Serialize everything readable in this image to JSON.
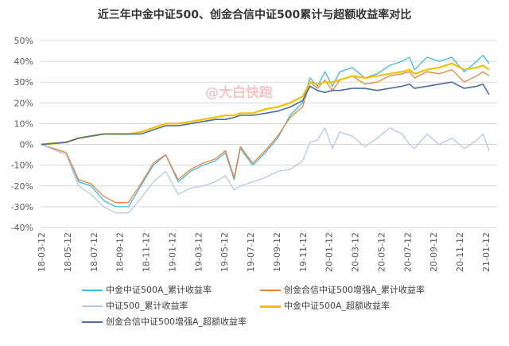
{
  "chart_data": {
    "type": "line",
    "title": "近三年中金中证500、创金合信中证500累计与超额收益率对比",
    "watermark": "@大白快跑",
    "y_tick_labels": [
      "50%",
      "40%",
      "30%",
      "20%",
      "10%",
      "0%",
      "-10%",
      "-20%",
      "-30%",
      "-40%"
    ],
    "ylim": [
      -40,
      50
    ],
    "x_tick_labels": [
      "18-03-12",
      "18-05-12",
      "18-07-12",
      "18-09-12",
      "18-11-12",
      "19-01-12",
      "19-03-12",
      "19-05-12",
      "19-07-12",
      "19-09-12",
      "19-11-12",
      "20-01-12",
      "20-03-12",
      "20-05-12",
      "20-07-12",
      "20-09-12",
      "20-11-12",
      "21-01-12"
    ],
    "x_index": [
      0,
      2,
      3,
      4,
      5,
      6,
      7,
      8,
      9,
      10,
      11,
      12,
      13,
      14,
      14.8,
      15.5,
      16,
      17,
      18,
      19,
      20,
      21,
      21.6,
      22.2,
      22.8,
      23.4,
      24,
      25,
      26,
      27,
      28,
      29,
      29.6,
      30,
      31,
      32,
      33,
      34,
      35,
      35.5,
      36
    ],
    "series": [
      {
        "name": "中金中证500A_累计收益率",
        "color": "#41b9e6",
        "width": 1.3,
        "values": [
          0,
          -4,
          -18,
          -20,
          -27,
          -30,
          -30,
          -20,
          -10,
          -5,
          -18,
          -13,
          -10,
          -8,
          -4,
          -17,
          -2,
          -10,
          -4,
          3,
          14,
          20,
          32,
          28,
          35,
          28,
          35,
          37,
          32,
          34,
          38,
          40,
          42,
          36,
          42,
          40,
          42,
          35,
          40,
          43,
          39
        ]
      },
      {
        "name": "创金合信中证500增强A_累计收益率",
        "color": "#e8863a",
        "width": 1.3,
        "values": [
          0,
          -4,
          -17,
          -19,
          -25,
          -28,
          -28,
          -19,
          -9,
          -5,
          -17,
          -12,
          -9,
          -7,
          -3,
          -16,
          -1,
          -9,
          -3,
          4,
          13,
          18,
          30,
          27,
          31,
          26,
          31,
          33,
          29,
          30,
          33,
          34,
          35,
          32,
          35,
          34,
          36,
          30,
          33,
          35,
          33
        ]
      },
      {
        "name": "中证500_累计收益率",
        "color": "#b4c8e6",
        "width": 1.3,
        "values": [
          0,
          -5,
          -20,
          -24,
          -30,
          -33,
          -33,
          -26,
          -18,
          -13,
          -24,
          -21,
          -20,
          -18,
          -15,
          -22,
          -20,
          -18,
          -16,
          -13,
          -12,
          -8,
          1,
          2,
          8,
          -2,
          6,
          4,
          -1,
          3,
          8,
          5,
          0,
          -2,
          5,
          0,
          3,
          -2,
          2,
          5,
          -3
        ]
      },
      {
        "name": "中金中证500A_超额收益率",
        "color": "#f2c200",
        "width": 2.2,
        "values": [
          0,
          1,
          3,
          4,
          5,
          5,
          5,
          6,
          8,
          10,
          10,
          11,
          12,
          13,
          14,
          14,
          15,
          15,
          17,
          18,
          20,
          23,
          30,
          29,
          30,
          30,
          31,
          33,
          32,
          33,
          34,
          35,
          36,
          34,
          36,
          37,
          39,
          36,
          37,
          38,
          36
        ]
      },
      {
        "name": "创金合信中证500增强A_超额收益率",
        "color": "#4a6e9e",
        "width": 1.6,
        "values": [
          0,
          1,
          3,
          4,
          5,
          5,
          5,
          5,
          7,
          9,
          9,
          10,
          11,
          12,
          12,
          13,
          14,
          14,
          15,
          16,
          18,
          21,
          28,
          26,
          25,
          26,
          26,
          27,
          27,
          26,
          27,
          28,
          29,
          27,
          28,
          29,
          30,
          27,
          28,
          29,
          24
        ]
      }
    ]
  },
  "legend": [
    {
      "name": "中金中证500A_累计收益率",
      "color": "#41b9e6",
      "width": 2
    },
    {
      "name": "创金合信中证500增强A_累计收益率",
      "color": "#e8863a",
      "width": 2
    },
    {
      "name": "中证500_累计收益率",
      "color": "#b4c8e6",
      "width": 2
    },
    {
      "name": "中金中证500A_超额收益率",
      "color": "#f2c200",
      "width": 3
    },
    {
      "name": "创金合信中证500增强A_超额收益率",
      "color": "#4a6e9e",
      "width": 2
    }
  ]
}
